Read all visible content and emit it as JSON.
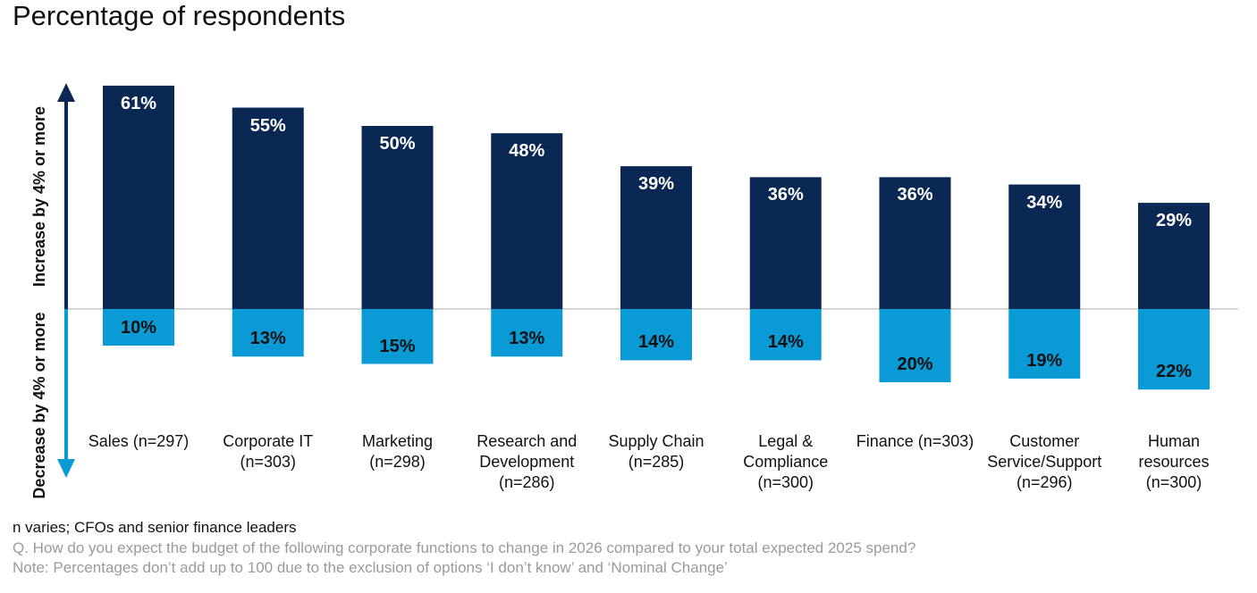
{
  "chart_data": {
    "type": "diverging-bar",
    "title": "Percentage of respondents",
    "categories": [
      "Sales (n=297)",
      "Corporate IT (n=303)",
      "Marketing (n=298)",
      "Research and Development (n=286)",
      "Supply Chain (n=285)",
      "Legal & Compliance (n=300)",
      "Finance (n=303)",
      "Customer Service/Support (n=296)",
      "Human resources (n=300)"
    ],
    "series": [
      {
        "name": "Increase by 4% or more",
        "color": "#0b2855",
        "values": [
          61,
          55,
          50,
          48,
          39,
          36,
          36,
          34,
          29
        ],
        "value_labels": [
          "61%",
          "55%",
          "50%",
          "48%",
          "39%",
          "36%",
          "36%",
          "34%",
          "29%"
        ]
      },
      {
        "name": "Decrease by 4% or more",
        "color": "#0a9ad6",
        "values": [
          10,
          13,
          15,
          13,
          14,
          14,
          20,
          19,
          22
        ],
        "value_labels": [
          "10%",
          "13%",
          "15%",
          "13%",
          "14%",
          "14%",
          "20%",
          "19%",
          "22%"
        ]
      }
    ],
    "notes": [
      "n varies; CFOs and senior finance leaders",
      "Q. How do you expect the budget of the following corporate functions to change in 2026 compared to your total expected 2025 spend?",
      "Note: Percentages don’t add up to 100 due to the exclusion of options ‘I don’t know’ and ‘Nominal Change’"
    ]
  }
}
